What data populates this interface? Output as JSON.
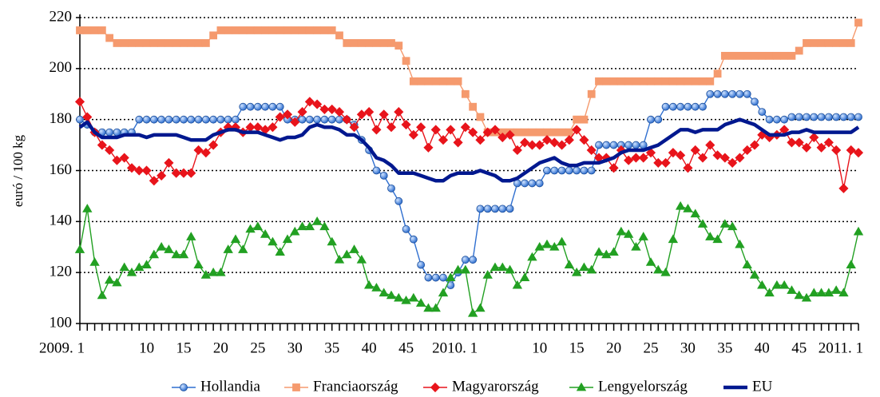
{
  "chart_data": {
    "type": "line",
    "y_label": "euró / 100 kg",
    "categories": [
      "2009. 1",
      null,
      null,
      null,
      null,
      null,
      null,
      null,
      null,
      "10",
      null,
      null,
      null,
      null,
      "15",
      null,
      null,
      null,
      null,
      "20",
      null,
      null,
      null,
      null,
      "25",
      null,
      null,
      null,
      null,
      "30",
      null,
      null,
      null,
      null,
      "35",
      null,
      null,
      null,
      null,
      "40",
      null,
      null,
      null,
      null,
      "45",
      null,
      null,
      null,
      null,
      null,
      null,
      null,
      null,
      "2010. 1",
      null,
      null,
      null,
      null,
      null,
      null,
      null,
      null,
      "10",
      null,
      null,
      null,
      null,
      "15",
      null,
      null,
      null,
      null,
      "20",
      null,
      null,
      null,
      null,
      "25",
      null,
      null,
      null,
      null,
      "30",
      null,
      null,
      null,
      null,
      "35",
      null,
      null,
      null,
      null,
      "40",
      null,
      null,
      null,
      null,
      "45",
      null,
      null,
      null,
      null,
      null,
      null,
      null,
      "2011. 1"
    ],
    "series": [
      {
        "name": "Hollandia",
        "color": "#2f6fd0",
        "marker": "circle",
        "values": [
          180,
          178,
          175,
          175,
          175,
          175,
          175,
          175,
          180,
          180,
          180,
          180,
          180,
          180,
          180,
          180,
          180,
          180,
          180,
          180,
          180,
          180,
          185,
          185,
          185,
          185,
          185,
          185,
          180,
          180,
          180,
          180,
          180,
          180,
          180,
          180,
          180,
          178,
          172,
          168,
          160,
          158,
          153,
          148,
          137,
          133,
          123,
          118,
          118,
          118,
          115,
          120,
          125,
          125,
          145,
          145,
          145,
          145,
          145,
          155,
          155,
          155,
          155,
          160,
          160,
          160,
          160,
          160,
          160,
          160,
          170,
          170,
          170,
          170,
          170,
          170,
          170,
          180,
          180,
          185,
          185,
          185,
          185,
          185,
          185,
          190,
          190,
          190,
          190,
          190,
          190,
          187,
          183,
          180,
          180,
          180,
          181,
          181,
          181,
          181,
          181,
          181,
          181,
          181,
          181,
          181
        ]
      },
      {
        "name": "Franciaország",
        "color": "#f59a6e",
        "marker": "square",
        "values": [
          215,
          215,
          215,
          215,
          212,
          210,
          210,
          210,
          210,
          210,
          210,
          210,
          210,
          210,
          210,
          210,
          210,
          210,
          213,
          215,
          215,
          215,
          215,
          215,
          215,
          215,
          215,
          215,
          215,
          215,
          215,
          215,
          215,
          215,
          215,
          213,
          210,
          210,
          210,
          210,
          210,
          210,
          210,
          209,
          203,
          195,
          195,
          195,
          195,
          195,
          195,
          195,
          190,
          185,
          181,
          175,
          175,
          175,
          175,
          175,
          175,
          175,
          175,
          175,
          175,
          175,
          175,
          180,
          180,
          190,
          195,
          195,
          195,
          195,
          195,
          195,
          195,
          195,
          195,
          195,
          195,
          195,
          195,
          195,
          195,
          195,
          198,
          205,
          205,
          205,
          205,
          205,
          205,
          205,
          205,
          205,
          205,
          207,
          210,
          210,
          210,
          210,
          210,
          210,
          210,
          218
        ]
      },
      {
        "name": "Magyarország",
        "color": "#e8141b",
        "marker": "diamond",
        "values": [
          187,
          181,
          175,
          170,
          168,
          164,
          165,
          161,
          160,
          160,
          156,
          158,
          163,
          159,
          159,
          159,
          168,
          167,
          170,
          175,
          177,
          177,
          175,
          177,
          177,
          176,
          177,
          181,
          182,
          179,
          183,
          187,
          186,
          184,
          184,
          183,
          180,
          177,
          182,
          183,
          176,
          182,
          177,
          183,
          178,
          174,
          177,
          169,
          176,
          172,
          176,
          171,
          177,
          175,
          172,
          175,
          176,
          173,
          174,
          168,
          171,
          170,
          170,
          172,
          171,
          170,
          172,
          176,
          172,
          168,
          165,
          165,
          161,
          168,
          164,
          165,
          165,
          167,
          163,
          163,
          167,
          166,
          161,
          168,
          165,
          170,
          166,
          165,
          163,
          165,
          168,
          170,
          174,
          173,
          174,
          176,
          171,
          171,
          169,
          173,
          169,
          171,
          168,
          153,
          168,
          167
        ]
      },
      {
        "name": "Lengyelország",
        "color": "#22a022",
        "marker": "triangle",
        "values": [
          129,
          145,
          124,
          111,
          117,
          116,
          122,
          120,
          122,
          123,
          127,
          130,
          129,
          127,
          127,
          134,
          123,
          119,
          120,
          120,
          129,
          133,
          129,
          137,
          138,
          135,
          132,
          128,
          133,
          136,
          138,
          138,
          140,
          138,
          132,
          125,
          127,
          129,
          125,
          115,
          114,
          112,
          111,
          110,
          109,
          110,
          108,
          106,
          106,
          112,
          118,
          121,
          121,
          104,
          106,
          119,
          122,
          122,
          121,
          115,
          118,
          126,
          130,
          131,
          130,
          132,
          123,
          120,
          122,
          121,
          128,
          127,
          128,
          136,
          135,
          130,
          134,
          124,
          121,
          120,
          133,
          146,
          145,
          143,
          139,
          134,
          133,
          139,
          138,
          131,
          123,
          119,
          115,
          112,
          115,
          115,
          113,
          111,
          110,
          112,
          112,
          112,
          113,
          112,
          123,
          136
        ]
      },
      {
        "name": "EU",
        "color": "#00188f",
        "marker": "none",
        "values": [
          177,
          179,
          175,
          173,
          173,
          173,
          174,
          174,
          174,
          173,
          174,
          174,
          174,
          174,
          173,
          172,
          172,
          172,
          174,
          175,
          176,
          176,
          175,
          175,
          175,
          174,
          173,
          172,
          173,
          173,
          174,
          177,
          178,
          177,
          177,
          176,
          174,
          174,
          172,
          169,
          165,
          164,
          162,
          159,
          159,
          159,
          158,
          157,
          156,
          156,
          158,
          159,
          159,
          159,
          160,
          159,
          158,
          156,
          156,
          157,
          159,
          161,
          163,
          164,
          165,
          163,
          162,
          162,
          163,
          163,
          163,
          164,
          165,
          167,
          168,
          168,
          168,
          169,
          170,
          172,
          174,
          176,
          176,
          175,
          176,
          176,
          176,
          178,
          179,
          180,
          179,
          178,
          176,
          174,
          174,
          174,
          175,
          175,
          176,
          175,
          175,
          175,
          175,
          175,
          175,
          177
        ]
      }
    ],
    "ylim": [
      100,
      220
    ],
    "yticks": [
      100,
      120,
      140,
      160,
      180,
      200,
      220
    ],
    "grid": true,
    "legend": "bottom"
  }
}
